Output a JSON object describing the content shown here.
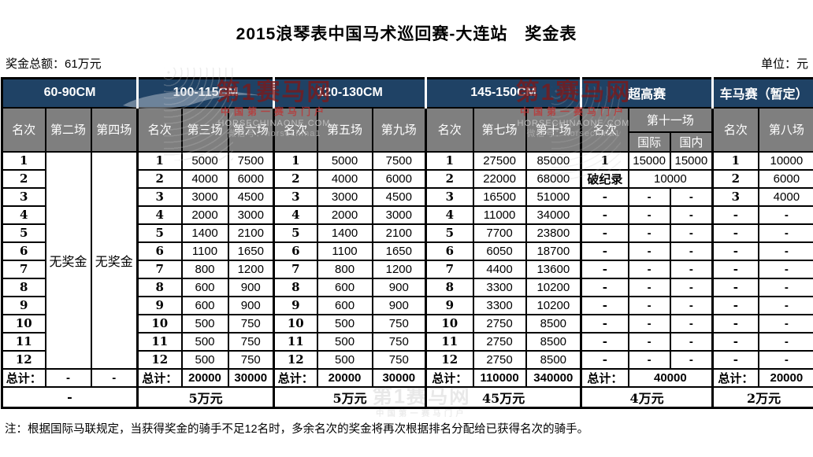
{
  "page": {
    "title": "2015浪琴表中国马术巡回赛-大连站　奖金表",
    "prize_total": "奖金总额：61万元",
    "unit": "单位：元",
    "note": "注：根据国际马联规定，当获得奖金的骑手不足12名时，多余名次的奖金将再次根据排名分配给已获得名次的骑手。"
  },
  "watermark": {
    "line1": "第1赛马网",
    "line2": "中国第一赛马门户",
    "line3": "HORSECHINAONE.COM",
    "line4": "微信号：horsechina1"
  },
  "colors": {
    "header_blue": "#1F4265",
    "header_gray": "#7F7F7F",
    "watermark_red": "#7D1818",
    "border_black": "#000000"
  },
  "table": {
    "groups": [
      "60-90CM",
      "100-115CM",
      "120-130CM",
      "145-150CM",
      "超高赛",
      "车马赛（暂定）"
    ],
    "sub": [
      "名次",
      "第二场",
      "第四场",
      "名次",
      "第三场",
      "第六场",
      "名次",
      "第五场",
      "第九场",
      "名次",
      "第七场",
      "第十场",
      "名次",
      "第十一场",
      "国际",
      "国内",
      "名次",
      "第八场"
    ],
    "body": [
      {
        "cls": "r-data",
        "name": "rank-row-1",
        "cells": [
          "1",
          {
            "t": "无奖金",
            "rs": 12
          },
          {
            "t": "无奖金",
            "rs": 12
          },
          "1",
          "5000",
          "7500",
          "1",
          "5000",
          "7500",
          "1",
          "27500",
          "85000",
          "1",
          "15000",
          "15000",
          "1",
          "10000"
        ]
      },
      {
        "cls": "r-data",
        "name": "rank-row-2",
        "cells": [
          "2",
          "2",
          "4000",
          "6000",
          "2",
          "4000",
          "6000",
          "2",
          "22000",
          "68000",
          "破纪录",
          {
            "t": "10000",
            "cs": 2
          },
          "2",
          "6000"
        ]
      },
      {
        "cls": "r-data",
        "name": "rank-row-3",
        "cells": [
          "3",
          "3",
          "3000",
          "4500",
          "3",
          "3000",
          "4500",
          "3",
          "16500",
          "51000",
          "-",
          "-",
          "-",
          "3",
          "4000"
        ]
      },
      {
        "cls": "r-data",
        "name": "rank-row-4",
        "cells": [
          "4",
          "4",
          "2000",
          "3000",
          "4",
          "2000",
          "3000",
          "4",
          "11000",
          "34000",
          "-",
          "-",
          "-",
          "-",
          "-"
        ]
      },
      {
        "cls": "r-data",
        "name": "rank-row-5",
        "cells": [
          "5",
          "5",
          "1400",
          "2100",
          "5",
          "1400",
          "2100",
          "5",
          "7700",
          "23800",
          "-",
          "-",
          "-",
          "-",
          "-"
        ]
      },
      {
        "cls": "r-data",
        "name": "rank-row-6",
        "cells": [
          "6",
          "6",
          "1100",
          "1650",
          "6",
          "1100",
          "1650",
          "6",
          "6050",
          "18700",
          "-",
          "-",
          "-",
          "-",
          "-"
        ]
      },
      {
        "cls": "r-data",
        "name": "rank-row-7",
        "cells": [
          "7",
          "7",
          "800",
          "1200",
          "7",
          "800",
          "1200",
          "7",
          "4400",
          "13600",
          "-",
          "-",
          "-",
          "-",
          "-"
        ]
      },
      {
        "cls": "r-data",
        "name": "rank-row-8",
        "cells": [
          "8",
          "8",
          "600",
          "900",
          "8",
          "600",
          "900",
          "8",
          "3300",
          "10200",
          "-",
          "-",
          "-",
          "-",
          "-"
        ]
      },
      {
        "cls": "r-data",
        "name": "rank-row-9",
        "cells": [
          "9",
          "9",
          "600",
          "900",
          "9",
          "600",
          "900",
          "9",
          "3300",
          "10200",
          "-",
          "-",
          "-",
          "-",
          "-"
        ]
      },
      {
        "cls": "r-data",
        "name": "rank-row-10",
        "cells": [
          "10",
          "10",
          "500",
          "750",
          "10",
          "500",
          "750",
          "10",
          "2750",
          "8500",
          "-",
          "-",
          "-",
          "-",
          "-"
        ]
      },
      {
        "cls": "r-data",
        "name": "rank-row-11",
        "cells": [
          "11",
          "11",
          "500",
          "750",
          "11",
          "500",
          "750",
          "11",
          "2750",
          "8500",
          "-",
          "-",
          "-",
          "-",
          "-"
        ]
      },
      {
        "cls": "r-data",
        "name": "rank-row-12",
        "cells": [
          "12",
          "12",
          "500",
          "750",
          "12",
          "500",
          "750",
          "12",
          "2750",
          "8500",
          "-",
          "-",
          "-",
          "-",
          "-"
        ]
      },
      {
        "cls": "r-total",
        "name": "totals-row",
        "cells": [
          "总计：",
          "-",
          "-",
          "总计：",
          "20000",
          "30000",
          "总计：",
          "20000",
          "30000",
          "总计：",
          "110000",
          "340000",
          "总计：",
          {
            "t": "40000",
            "cs": 2
          },
          "总计：",
          "20000"
        ]
      },
      {
        "cls": "r-sum",
        "name": "group-sum-row",
        "cells": [
          {
            "t": "-",
            "cs": 3
          },
          {
            "t": "5万元",
            "cs": 3
          },
          {
            "t": "5万元",
            "cs": 3
          },
          {
            "t": "45万元",
            "cs": 3
          },
          {
            "t": "4万元",
            "cs": 3
          },
          {
            "t": "2万元",
            "cs": 2
          }
        ]
      }
    ]
  }
}
